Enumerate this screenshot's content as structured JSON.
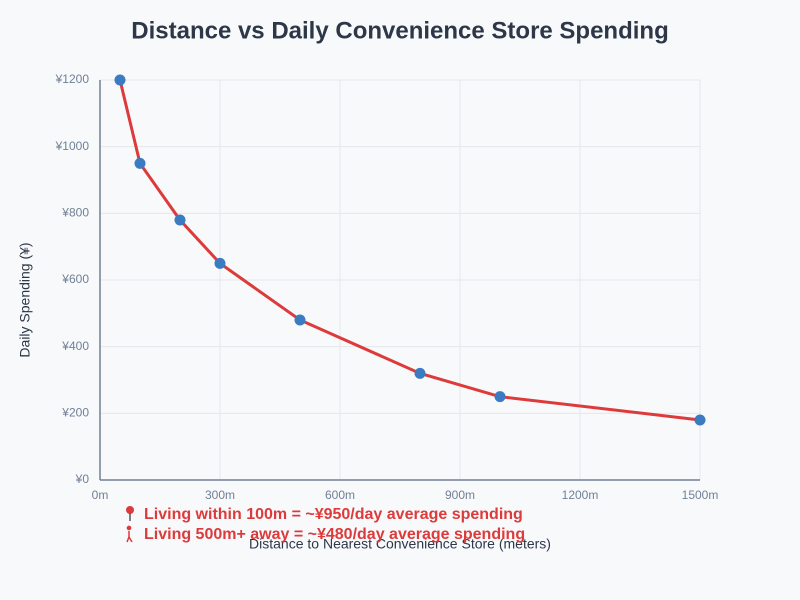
{
  "chart_data": {
    "type": "line",
    "title": "Distance vs Daily Convenience Store Spending",
    "x_label": "Distance to Nearest Convenience Store (meters)",
    "y_label": "Daily Spending (¥)",
    "x": [
      50,
      100,
      200,
      300,
      500,
      800,
      1000,
      1500
    ],
    "series": [
      {
        "name": "Daily Spending",
        "color": "#dd3b3b",
        "marker_color": "#3a7bc2",
        "values": [
          1200,
          950,
          780,
          650,
          480,
          320,
          250,
          180
        ]
      }
    ],
    "xlim": [
      0,
      1500
    ],
    "xticks": [
      {
        "value": 0,
        "label": "0m"
      },
      {
        "value": 300,
        "label": "300m"
      },
      {
        "value": 600,
        "label": "600m"
      },
      {
        "value": 900,
        "label": "900m"
      },
      {
        "value": 1200,
        "label": "1200m"
      },
      {
        "value": 1500,
        "label": "1500m"
      }
    ],
    "ylim": [
      0,
      1200
    ],
    "yticks": [
      {
        "value": 0,
        "label": "¥0"
      },
      {
        "value": 200,
        "label": "¥200"
      },
      {
        "value": 400,
        "label": "¥400"
      },
      {
        "value": 600,
        "label": "¥600"
      },
      {
        "value": 800,
        "label": "¥800"
      },
      {
        "value": 1000,
        "label": "¥1000"
      },
      {
        "value": 1200,
        "label": "¥1200"
      }
    ],
    "grid": true,
    "annotations": [
      "Living within 100m = ~¥950/day average spending",
      "Living 500m+ away = ~¥480/day average spending"
    ]
  }
}
